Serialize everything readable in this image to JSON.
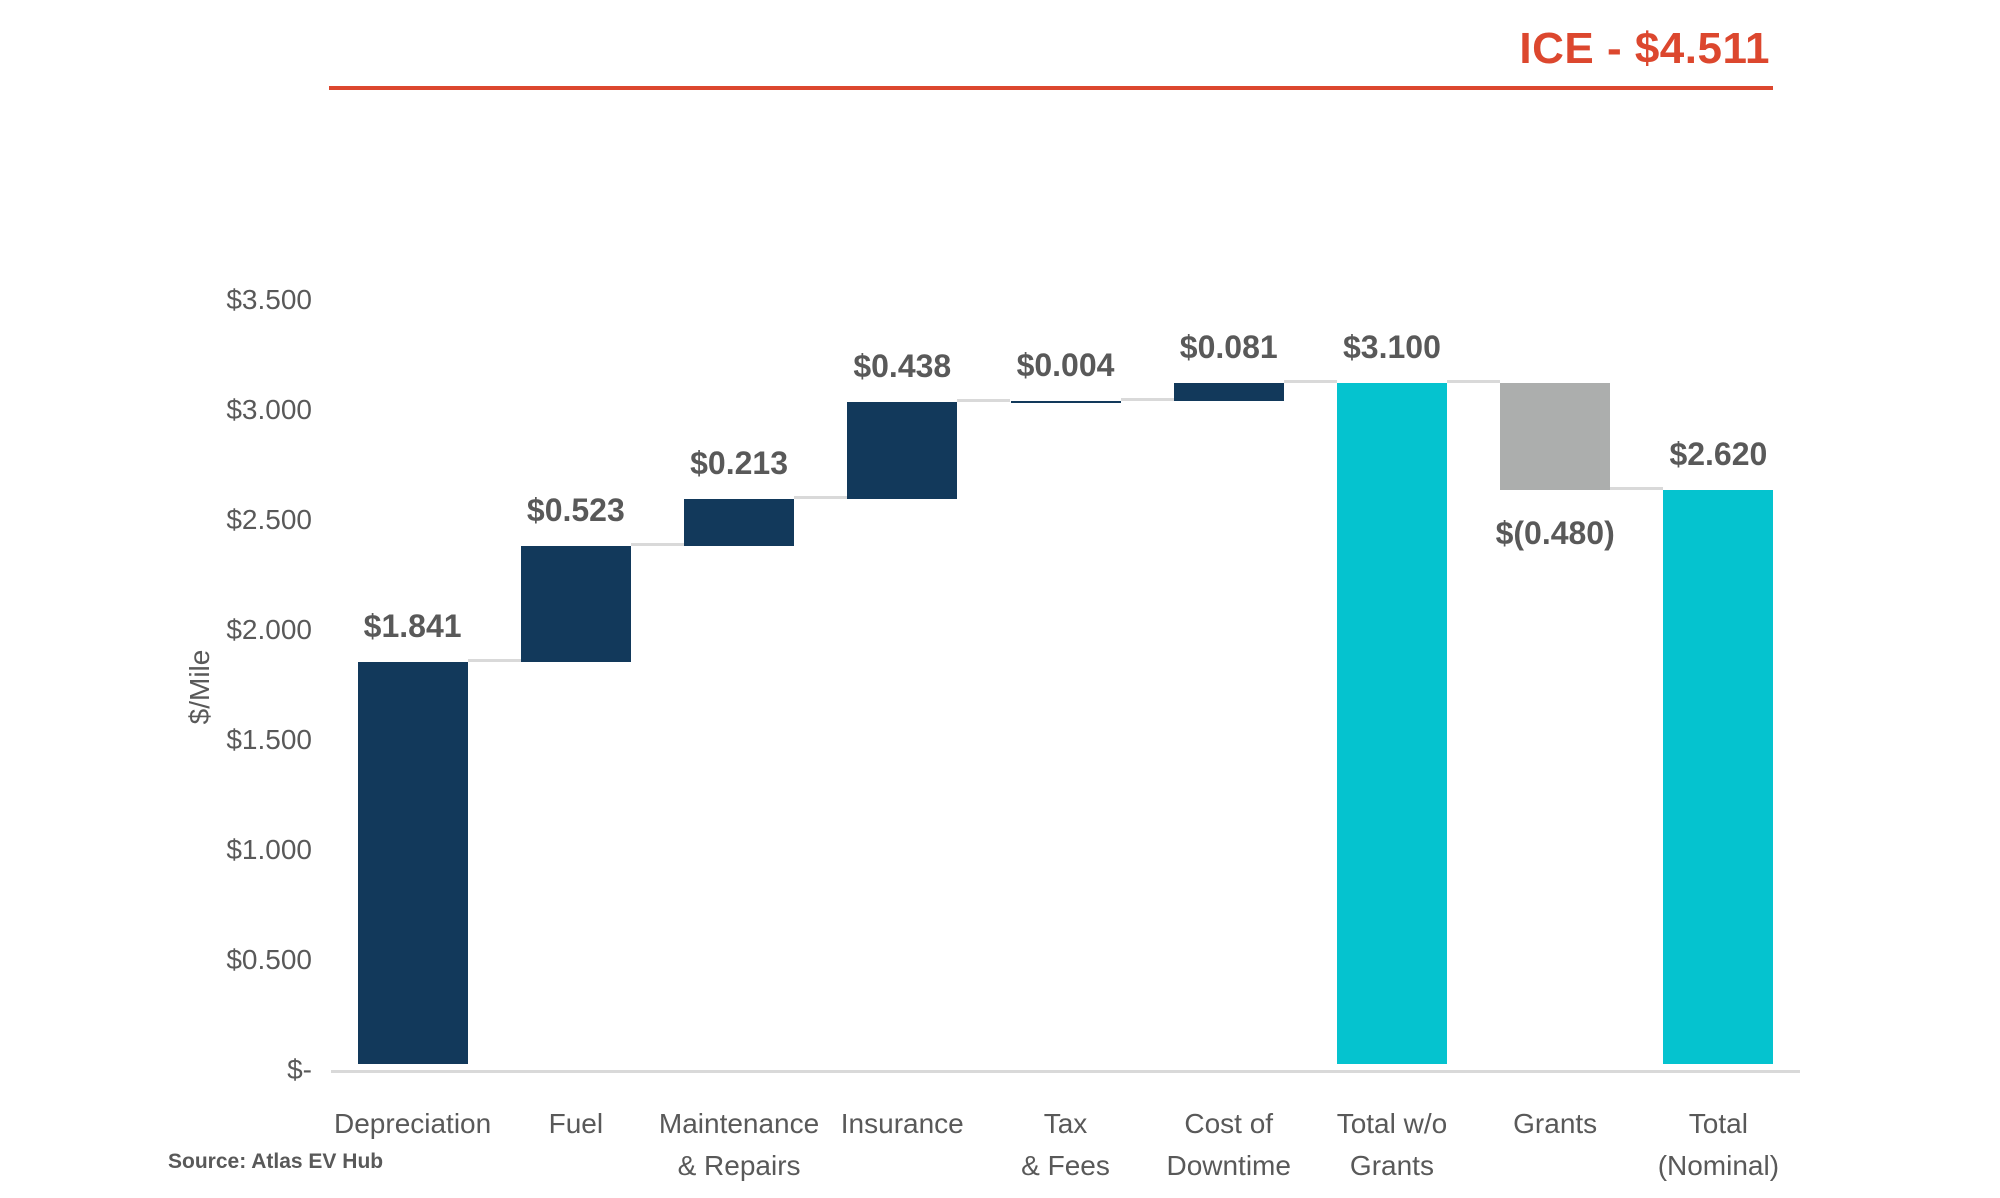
{
  "header": {
    "title": "ICE - $4.511"
  },
  "footer": {
    "source": "Source: Atlas EV Hub"
  },
  "chart_data": {
    "type": "bar",
    "subtype": "waterfall",
    "title": "ICE - $4.511",
    "comparison_note": "ICE - $4.511",
    "ylabel": "$/Mile",
    "ylim": [
      0,
      3.5
    ],
    "ytick_step": 0.5,
    "grid": false,
    "legend": false,
    "yticks": [
      {
        "value": 0.0,
        "label": "$-"
      },
      {
        "value": 0.5,
        "label": "$0.500"
      },
      {
        "value": 1.0,
        "label": "$1.000"
      },
      {
        "value": 1.5,
        "label": "$1.500"
      },
      {
        "value": 2.0,
        "label": "$2.000"
      },
      {
        "value": 2.5,
        "label": "$2.500"
      },
      {
        "value": 3.0,
        "label": "$3.000"
      },
      {
        "value": 3.5,
        "label": "$3.500"
      }
    ],
    "bars": [
      {
        "category": "Depreciation",
        "value": 1.841,
        "label": "$1.841",
        "kind": "increase"
      },
      {
        "category": "Fuel",
        "value": 0.523,
        "label": "$0.523",
        "kind": "increase"
      },
      {
        "category": "Maintenance\n& Repairs",
        "value": 0.213,
        "label": "$0.213",
        "kind": "increase"
      },
      {
        "category": "Insurance",
        "value": 0.438,
        "label": "$0.438",
        "kind": "increase"
      },
      {
        "category": "Tax\n& Fees",
        "value": 0.004,
        "label": "$0.004",
        "kind": "increase"
      },
      {
        "category": "Cost of\nDowntime",
        "value": 0.081,
        "label": "$0.081",
        "kind": "increase"
      },
      {
        "category": "Total w/o\nGrants",
        "value": 3.1,
        "label": "$3.100",
        "kind": "total"
      },
      {
        "category": "Grants",
        "value": -0.48,
        "label": "$(0.480)",
        "kind": "decrease"
      },
      {
        "category": "Total\n(Nominal)",
        "value": 2.62,
        "label": "$2.620",
        "kind": "total"
      }
    ],
    "colors": {
      "increase": "#12395B",
      "decrease": "#ACAEAD",
      "total": "#05C3CF",
      "accent": "#DC472E",
      "value_label": "#595959",
      "axis_text": "#595959",
      "connector": "#D9D9D9",
      "axis_line": "#D9D9D9",
      "background": "#FFFFFF"
    }
  }
}
